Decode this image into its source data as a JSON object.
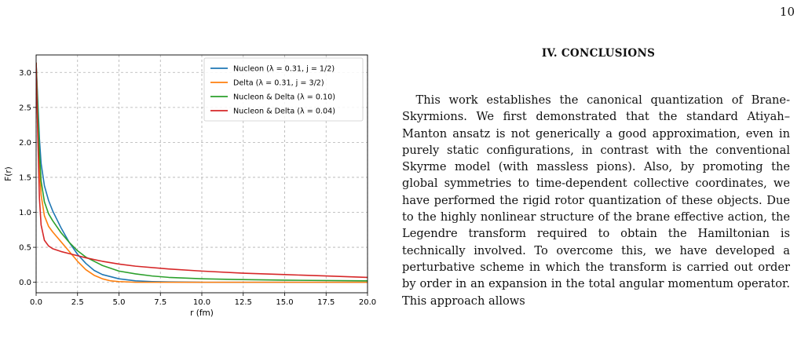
{
  "page_number": "10",
  "section": {
    "heading": "IV.   CONCLUSIONS",
    "paragraph": "This work establishes the canonical quantization of Brane-Skyrmions. We first demonstrated that the standard Atiyah–Manton ansatz is not generically a good approximation, even in purely static configurations, in contrast with the conventional Skyrme model (with massless pions). Also, by promoting the global symmetries to time-dependent collective coordinates, we have performed the rigid rotor quantization of these objects. Due to the highly nonlinear structure of the brane effective action, the Legendre transform required to obtain the Hamiltonian is technically involved. To overcome this, we have developed a perturbative scheme in which the transform is carried out order by order in an expansion in the total angular momentum operator. This approach allows"
  },
  "chart_data": {
    "type": "line",
    "xlabel": "r (fm)",
    "ylabel": "F(r)",
    "xlim": [
      0,
      20
    ],
    "ylim": [
      -0.15,
      3.25
    ],
    "x_ticks": [
      0,
      2.5,
      5,
      7.5,
      10,
      12.5,
      15,
      17.5,
      20
    ],
    "x_tick_labels": [
      "0.0",
      "2.5",
      "5.0",
      "7.5",
      "10.0",
      "12.5",
      "15.0",
      "17.5",
      "20.0"
    ],
    "y_ticks": [
      0,
      0.5,
      1,
      1.5,
      2,
      2.5,
      3
    ],
    "y_tick_labels": [
      "0.0",
      "0.5",
      "1.0",
      "1.5",
      "2.0",
      "2.5",
      "3.0"
    ],
    "grid": true,
    "legend_position": "top-right",
    "series": [
      {
        "name": "Nucleon (λ = 0.31, j = 1/2)",
        "color": "#1f77b4",
        "x": [
          0,
          0.1,
          0.2,
          0.3,
          0.5,
          0.75,
          1,
          1.25,
          1.5,
          2,
          2.5,
          3,
          3.5,
          4,
          5,
          6,
          7,
          8,
          10,
          12,
          15,
          20
        ],
        "y": [
          3.14,
          2.6,
          2.05,
          1.7,
          1.38,
          1.17,
          1.02,
          0.9,
          0.78,
          0.57,
          0.4,
          0.27,
          0.17,
          0.11,
          0.05,
          0.02,
          0.01,
          0.005,
          0.0,
          0.0,
          0.0,
          0.0
        ]
      },
      {
        "name": "Delta (λ = 0.31, j = 3/2)",
        "color": "#ff7f0e",
        "x": [
          0,
          0.1,
          0.2,
          0.3,
          0.5,
          0.75,
          1,
          1.25,
          1.5,
          2,
          2.5,
          3,
          3.5,
          4,
          4.5,
          5,
          6,
          7,
          10,
          15,
          20
        ],
        "y": [
          3.14,
          2.4,
          1.65,
          1.25,
          0.95,
          0.8,
          0.72,
          0.65,
          0.58,
          0.44,
          0.3,
          0.18,
          0.1,
          0.05,
          0.02,
          0.01,
          0.0,
          0.0,
          0.0,
          0.0,
          0.0
        ]
      },
      {
        "name": "Nucleon & Delta (λ = 0.10)",
        "color": "#2ca02c",
        "x": [
          0,
          0.1,
          0.2,
          0.3,
          0.5,
          0.75,
          1,
          1.5,
          2,
          2.5,
          3,
          4,
          5,
          6,
          7,
          8,
          10,
          12,
          15,
          20
        ],
        "y": [
          3.14,
          2.5,
          1.85,
          1.45,
          1.15,
          0.98,
          0.88,
          0.71,
          0.57,
          0.45,
          0.36,
          0.24,
          0.16,
          0.12,
          0.09,
          0.07,
          0.05,
          0.04,
          0.03,
          0.02
        ]
      },
      {
        "name": "Nucleon & Delta (λ = 0.04)",
        "color": "#d62728",
        "x": [
          0,
          0.1,
          0.2,
          0.3,
          0.5,
          0.75,
          1,
          1.5,
          2,
          3,
          4,
          5,
          6,
          8,
          10,
          12.5,
          15,
          17.5,
          20
        ],
        "y": [
          3.14,
          2.1,
          1.2,
          0.82,
          0.6,
          0.52,
          0.48,
          0.44,
          0.41,
          0.35,
          0.3,
          0.26,
          0.23,
          0.19,
          0.16,
          0.13,
          0.11,
          0.09,
          0.07
        ]
      }
    ]
  }
}
